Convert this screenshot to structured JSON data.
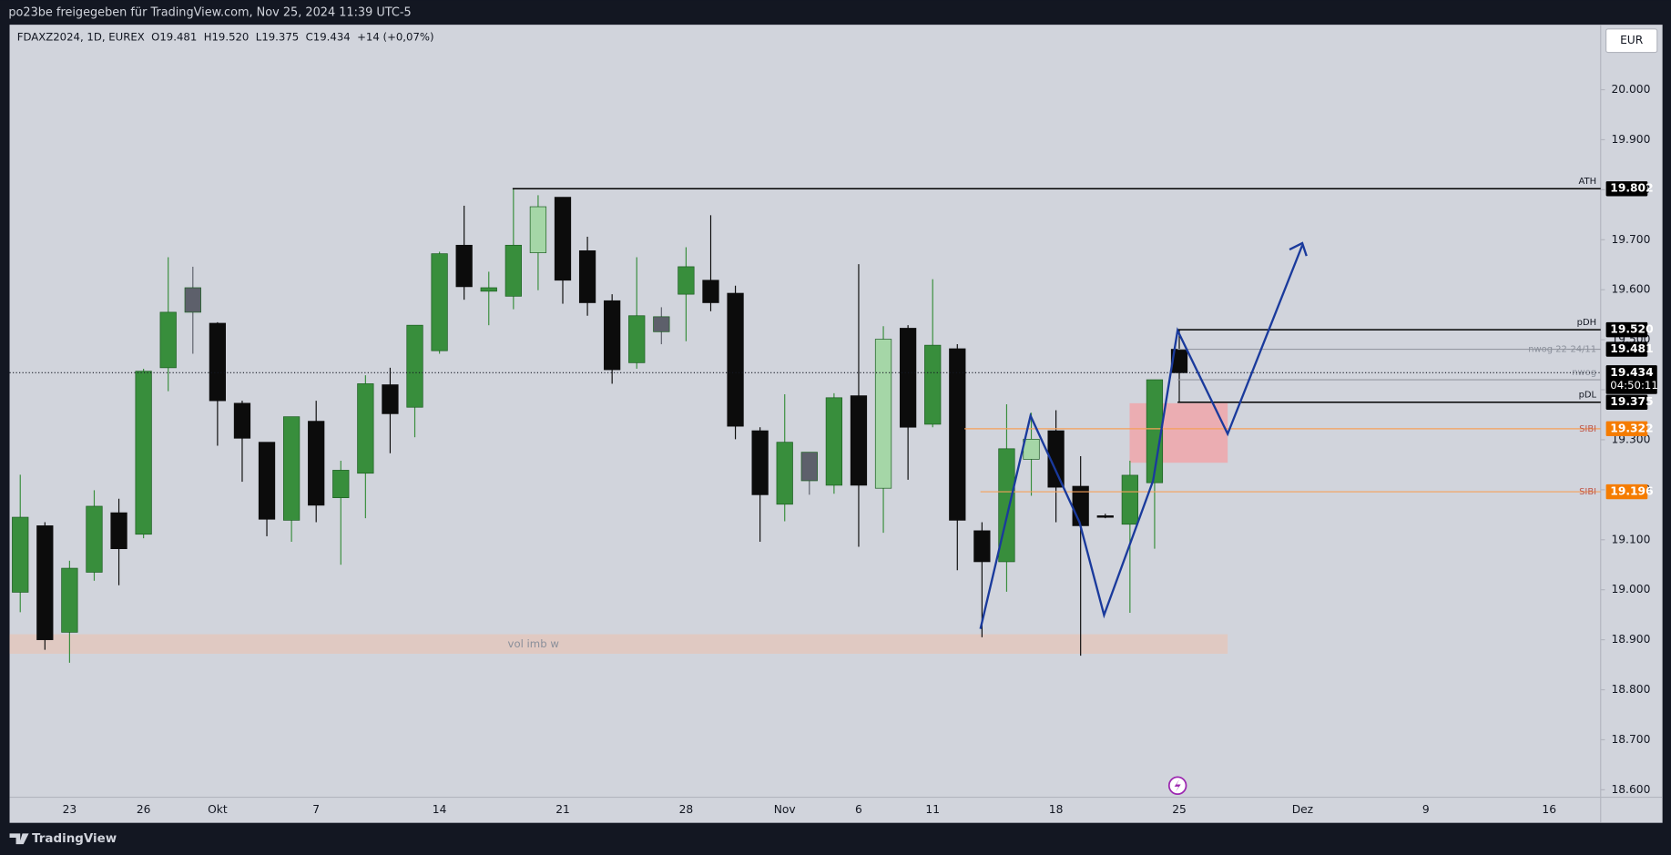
{
  "header": {
    "share_text": "po23be freigegeben für TradingView.com, Nov 25, 2024 11:39 UTC-5",
    "legend": "FDAXZ2024, 1D, EUREX  O19.481  H19.520  L19.375  C19.434  +14 (+0,07%)",
    "currency": "EUR",
    "brand": "TradingView"
  },
  "chart_data": {
    "type": "candlestick",
    "categories": [
      null,
      null,
      "23",
      null,
      null,
      "26",
      null,
      null,
      "Okt",
      null,
      null,
      null,
      "7",
      null,
      null,
      null,
      null,
      "14",
      null,
      null,
      null,
      null,
      "21",
      null,
      null,
      null,
      null,
      "28",
      null,
      null,
      null,
      "Nov",
      null,
      null,
      "6",
      null,
      null,
      "11",
      null,
      null,
      null,
      null,
      "18",
      null,
      null,
      null,
      null,
      "25",
      null,
      null,
      null,
      null,
      "Dez",
      null,
      null,
      null,
      null,
      "9",
      null,
      null,
      null,
      null,
      "16",
      null,
      null
    ],
    "open": [
      18995,
      19128,
      18915,
      19035,
      19154,
      19111,
      19444,
      19604,
      19533,
      19373,
      19295,
      19139,
      19337,
      19184,
      19233,
      19410,
      19365,
      19478,
      19689,
      19597,
      19587,
      19674,
      19785,
      19678,
      19578,
      19454,
      19546,
      19591,
      19619,
      19593,
      19318,
      19171,
      19275,
      19209,
      19388,
      19203,
      19523,
      19331,
      19482,
      19118,
      19056,
      19261,
      19318,
      19207,
      19148,
      19131,
      19214,
      19481,
      null,
      null,
      null,
      null,
      null,
      null,
      null,
      null,
      null,
      null,
      null,
      null,
      null,
      null,
      null,
      null,
      null
    ],
    "high": [
      19230,
      19135,
      19058,
      19199,
      19182,
      19442,
      19665,
      19646,
      19535,
      19378,
      19295,
      19346,
      19378,
      19258,
      19429,
      19444,
      19529,
      19676,
      19768,
      19636,
      19802,
      19789,
      19785,
      19706,
      19591,
      19665,
      19565,
      19685,
      19749,
      19608,
      19325,
      19391,
      19275,
      19393,
      19651,
      19527,
      19529,
      19621,
      19491,
      19135,
      19371,
      19354,
      19359,
      19267,
      19152,
      19258,
      19420,
      19520,
      null,
      null,
      null,
      null,
      null,
      null,
      null,
      null,
      null,
      null,
      null,
      null,
      null,
      null,
      null,
      null,
      null
    ],
    "low": [
      18955,
      18880,
      18854,
      19018,
      19009,
      19103,
      19397,
      19472,
      19288,
      19216,
      19107,
      19096,
      19135,
      19050,
      19143,
      19273,
      19305,
      19472,
      19580,
      19529,
      19561,
      19599,
      19572,
      19548,
      19412,
      19442,
      19491,
      19497,
      19557,
      19301,
      19096,
      19137,
      19190,
      19192,
      19086,
      19114,
      19220,
      19325,
      19039,
      18905,
      18996,
      19188,
      19135,
      18868,
      19143,
      18954,
      19082,
      19375,
      null,
      null,
      null,
      null,
      null,
      null,
      null,
      null,
      null,
      null,
      null,
      null,
      null,
      null,
      null,
      null,
      null
    ],
    "close": [
      19145,
      18900,
      19043,
      19167,
      19082,
      19437,
      19555,
      19555,
      19378,
      19303,
      19141,
      19346,
      19169,
      19239,
      19412,
      19352,
      19529,
      19672,
      19606,
      19604,
      19689,
      19766,
      19619,
      19574,
      19440,
      19548,
      19516,
      19646,
      19574,
      19327,
      19190,
      19295,
      19218,
      19384,
      19209,
      19501,
      19325,
      19489,
      19139,
      19056,
      19282,
      19301,
      19205,
      19128,
      19148,
      19229,
      19420,
      19434,
      null,
      null,
      null,
      null,
      null,
      null,
      null,
      null,
      null,
      null,
      null,
      null,
      null,
      null,
      null,
      null,
      null
    ],
    "colors": [
      "#388e3c",
      "#0c0c0c",
      "#388e3c",
      "#388e3c",
      "#0c0c0c",
      "#388e3c",
      "#388e3c",
      "#5d606b",
      "#0c0c0c",
      "#0c0c0c",
      "#0c0c0c",
      "#388e3c",
      "#0c0c0c",
      "#388e3c",
      "#388e3c",
      "#0c0c0c",
      "#388e3c",
      "#388e3c",
      "#0c0c0c",
      "#388e3c",
      "#388e3c",
      "#a5d6a7",
      "#0c0c0c",
      "#0c0c0c",
      "#0c0c0c",
      "#388e3c",
      "#5d606b",
      "#388e3c",
      "#0c0c0c",
      "#0c0c0c",
      "#0c0c0c",
      "#388e3c",
      "#5d606b",
      "#388e3c",
      "#0c0c0c",
      "#a5d6a7",
      "#0c0c0c",
      "#388e3c",
      "#0c0c0c",
      "#0c0c0c",
      "#388e3c",
      "#a5d6a7",
      "#0c0c0c",
      "#0c0c0c",
      "#0c0c0c",
      "#388e3c",
      "#388e3c",
      "#0c0c0c",
      null,
      null,
      null,
      null,
      null,
      null,
      null,
      null,
      null,
      null,
      null,
      null,
      null,
      null,
      null,
      null,
      null
    ],
    "ylim": [
      18585,
      20130
    ],
    "yticks": [
      {
        "value": 20000,
        "label": "20.000"
      },
      {
        "value": 19900,
        "label": "19.900"
      },
      {
        "value": 19800,
        "label": "19.800"
      },
      {
        "value": 19700,
        "label": "19.700"
      },
      {
        "value": 19600,
        "label": "19.600"
      },
      {
        "value": 19500,
        "label": "19.500"
      },
      {
        "value": 19400,
        "label": "19.400"
      },
      {
        "value": 19300,
        "label": "19.300"
      },
      {
        "value": 19200,
        "label": "19.200"
      },
      {
        "value": 19100,
        "label": "19.100"
      },
      {
        "value": 19000,
        "label": "19.000"
      },
      {
        "value": 18900,
        "label": "18.900"
      },
      {
        "value": 18800,
        "label": "18.800"
      },
      {
        "value": 18700,
        "label": "18.700"
      },
      {
        "value": 18600,
        "label": "18.600"
      }
    ],
    "levels": [
      {
        "name": "ATH",
        "value": 19802,
        "label": "19.802",
        "color": "#000000",
        "box_color": "#000000"
      },
      {
        "name": "pDH",
        "value": 19520,
        "label": "19.520",
        "color": "#000000",
        "box_color": "#000000"
      },
      {
        "name": "nwog 22-24/11",
        "value": 19481,
        "label": "19.481",
        "color": "#9598a1",
        "box_color": "#000000"
      },
      {
        "name": "nwog",
        "value": 19420,
        "color": "#9598a1"
      },
      {
        "name": "pDL",
        "value": 19375,
        "label": "19.375",
        "color": "#000000",
        "box_color": "#000000"
      },
      {
        "name": "SIBI",
        "value": 19322,
        "label": "19.322",
        "color": "#f5a05a",
        "box_color": "#f57c00"
      },
      {
        "name": "SIBI",
        "value": 19196,
        "label": "19.196",
        "color": "#f5a05a",
        "box_color": "#f57c00"
      }
    ],
    "current": {
      "value": 19434,
      "label": "19.434",
      "countdown": "04:50:11"
    },
    "zones": [
      {
        "low": 19254,
        "high": 19373,
        "color": "#f0a6aa"
      },
      {
        "name": "vol imb w",
        "low": 18872,
        "high": 18911,
        "color": "#e3c7bd"
      }
    ]
  }
}
